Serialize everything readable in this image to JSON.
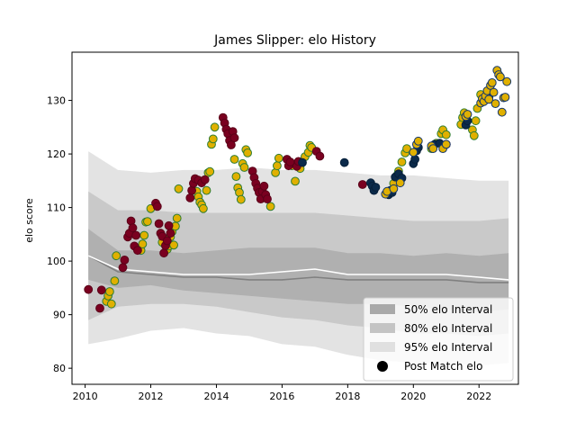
{
  "chart_data": {
    "type": "scatter",
    "title": "James Slipper: elo History",
    "xlabel": "",
    "ylabel": "elo score",
    "xlim": [
      2009.6,
      2023.2
    ],
    "ylim": [
      77,
      139
    ],
    "xticks": [
      2010,
      2012,
      2014,
      2016,
      2018,
      2020,
      2022
    ],
    "yticks": [
      80,
      90,
      100,
      110,
      120,
      130
    ],
    "grid": false,
    "legend_position": "lower right",
    "legend": [
      {
        "label": "50% elo Interval",
        "kind": "band",
        "color": "#a9a9a9"
      },
      {
        "label": "80% elo Interval",
        "kind": "band",
        "color": "#c4c4c4"
      },
      {
        "label": "95% elo Interval",
        "kind": "band",
        "color": "#e0e0e0"
      },
      {
        "label": "Post Match elo",
        "kind": "marker",
        "color": "#000000"
      }
    ],
    "colors": {
      "band_95": "#e3e3e3",
      "band_80": "#c9c9c9",
      "band_50": "#b0b0b0",
      "median_line": "#808080",
      "mean_line": "#ffffff",
      "marker_gold": "#e0b000",
      "marker_green_edge": "#2e7d32",
      "marker_maroon": "#7a0020",
      "marker_navy": "#0b2a4a",
      "marker_gold_navy_edge": "#14376b"
    },
    "intervals": {
      "x": [
        2010.1,
        2011.0,
        2012.0,
        2013.0,
        2014.0,
        2015.0,
        2016.0,
        2017.0,
        2018.0,
        2019.0,
        2020.0,
        2021.0,
        2022.0,
        2022.9
      ],
      "p2_5": [
        84.5,
        85.5,
        87.0,
        87.5,
        86.5,
        86.0,
        84.5,
        84.0,
        82.5,
        81.5,
        81.0,
        81.0,
        80.5,
        81.0
      ],
      "p10": [
        89.0,
        91.5,
        92.0,
        92.0,
        91.5,
        90.5,
        89.5,
        89.0,
        88.0,
        87.5,
        86.5,
        86.5,
        86.0,
        86.5
      ],
      "p25": [
        96.5,
        95.0,
        95.5,
        94.5,
        94.0,
        93.5,
        93.0,
        92.5,
        92.0,
        92.0,
        91.5,
        91.0,
        90.5,
        91.0
      ],
      "p75": [
        106.0,
        102.0,
        102.0,
        101.5,
        102.0,
        102.5,
        102.5,
        102.5,
        101.5,
        101.5,
        101.0,
        101.5,
        101.0,
        101.5
      ],
      "p90": [
        113.0,
        109.5,
        109.5,
        109.0,
        109.0,
        109.0,
        109.0,
        109.0,
        108.5,
        108.0,
        107.5,
        107.5,
        107.5,
        108.0
      ],
      "p97_5": [
        120.5,
        117.0,
        116.5,
        117.0,
        117.0,
        117.5,
        117.0,
        117.0,
        116.5,
        116.0,
        116.0,
        115.5,
        115.0,
        115.0
      ],
      "median": [
        101.0,
        98.0,
        97.5,
        97.0,
        97.0,
        96.5,
        96.5,
        97.0,
        96.5,
        96.5,
        96.5,
        96.5,
        96.0,
        96.0
      ],
      "mean": [
        101.0,
        98.5,
        98.0,
        97.5,
        97.5,
        97.5,
        98.0,
        98.5,
        97.5,
        97.5,
        97.5,
        97.5,
        97.0,
        96.5
      ]
    },
    "series": [
      {
        "style": "gold-green",
        "points": [
          [
            2010.65,
            92.5
          ],
          [
            2010.7,
            93.5
          ],
          [
            2010.75,
            94.3
          ],
          [
            2010.8,
            92.0
          ],
          [
            2010.9,
            96.3
          ],
          [
            2010.95,
            101.0
          ],
          [
            2011.7,
            102.0
          ],
          [
            2011.75,
            103.2
          ],
          [
            2011.8,
            104.8
          ],
          [
            2011.85,
            107.3
          ],
          [
            2011.9,
            107.4
          ],
          [
            2012.0,
            109.8
          ],
          [
            2012.35,
            103.5
          ],
          [
            2012.5,
            102.2
          ],
          [
            2012.55,
            102.8
          ],
          [
            2012.6,
            104.5
          ],
          [
            2012.65,
            105.5
          ],
          [
            2012.7,
            103.0
          ],
          [
            2012.75,
            106.5
          ],
          [
            2012.8,
            108.0
          ],
          [
            2012.85,
            113.5
          ],
          [
            2013.4,
            113.0
          ],
          [
            2013.45,
            112.0
          ],
          [
            2013.5,
            111.0
          ],
          [
            2013.55,
            110.5
          ],
          [
            2013.6,
            109.8
          ],
          [
            2013.7,
            113.2
          ],
          [
            2013.75,
            116.5
          ],
          [
            2013.8,
            116.7
          ],
          [
            2013.85,
            121.8
          ],
          [
            2013.9,
            122.8
          ],
          [
            2013.95,
            125.0
          ],
          [
            2014.55,
            119.0
          ],
          [
            2014.6,
            115.8
          ],
          [
            2014.65,
            113.7
          ],
          [
            2014.7,
            112.8
          ],
          [
            2014.75,
            111.5
          ],
          [
            2014.8,
            118.2
          ],
          [
            2014.85,
            117.5
          ],
          [
            2014.9,
            120.8
          ],
          [
            2014.95,
            120.2
          ],
          [
            2015.65,
            110.2
          ],
          [
            2015.8,
            116.5
          ],
          [
            2015.85,
            117.8
          ],
          [
            2015.9,
            119.2
          ],
          [
            2016.3,
            117.8
          ],
          [
            2016.4,
            114.9
          ],
          [
            2016.55,
            117.3
          ],
          [
            2016.7,
            119.5
          ],
          [
            2016.8,
            120.3
          ],
          [
            2016.85,
            121.6
          ],
          [
            2016.9,
            121.2
          ],
          [
            2019.4,
            114.5
          ],
          [
            2019.5,
            116.0
          ],
          [
            2019.55,
            116.8
          ],
          [
            2019.65,
            118.5
          ],
          [
            2019.75,
            120.2
          ],
          [
            2019.8,
            121.0
          ],
          [
            2020.55,
            121.0
          ],
          [
            2020.7,
            122.0
          ],
          [
            2020.85,
            123.8
          ],
          [
            2020.9,
            124.5
          ],
          [
            2021.0,
            123.6
          ],
          [
            2021.45,
            125.5
          ],
          [
            2021.5,
            126.8
          ],
          [
            2021.55,
            127.7
          ],
          [
            2021.8,
            124.5
          ],
          [
            2021.85,
            123.4
          ],
          [
            2021.9,
            126.2
          ],
          [
            2021.95,
            128.5
          ],
          [
            2022.05,
            131.1
          ]
        ]
      },
      {
        "style": "maroon",
        "points": [
          [
            2010.1,
            94.7
          ],
          [
            2010.45,
            91.2
          ],
          [
            2010.5,
            94.6
          ],
          [
            2011.15,
            98.8
          ],
          [
            2011.2,
            100.2
          ],
          [
            2011.3,
            104.5
          ],
          [
            2011.35,
            105.2
          ],
          [
            2011.4,
            107.5
          ],
          [
            2011.45,
            106.2
          ],
          [
            2011.5,
            102.8
          ],
          [
            2011.55,
            104.8
          ],
          [
            2011.6,
            102.0
          ],
          [
            2012.15,
            110.8
          ],
          [
            2012.2,
            110.2
          ],
          [
            2012.25,
            107.0
          ],
          [
            2012.3,
            105.2
          ],
          [
            2012.35,
            104.6
          ],
          [
            2012.4,
            101.5
          ],
          [
            2012.45,
            102.9
          ],
          [
            2012.5,
            103.8
          ],
          [
            2012.55,
            106.6
          ],
          [
            2012.6,
            105.2
          ],
          [
            2013.2,
            111.8
          ],
          [
            2013.25,
            113.2
          ],
          [
            2013.3,
            114.5
          ],
          [
            2013.35,
            115.4
          ],
          [
            2013.45,
            115.1
          ],
          [
            2013.55,
            114.6
          ],
          [
            2013.65,
            115.2
          ],
          [
            2014.2,
            126.8
          ],
          [
            2014.25,
            125.8
          ],
          [
            2014.3,
            124.6
          ],
          [
            2014.35,
            123.8
          ],
          [
            2014.4,
            122.5
          ],
          [
            2014.45,
            121.7
          ],
          [
            2014.5,
            124.2
          ],
          [
            2014.55,
            123.0
          ],
          [
            2015.1,
            116.8
          ],
          [
            2015.15,
            115.6
          ],
          [
            2015.2,
            114.5
          ],
          [
            2015.25,
            113.6
          ],
          [
            2015.3,
            112.8
          ],
          [
            2015.35,
            111.6
          ],
          [
            2015.4,
            113.0
          ],
          [
            2015.45,
            114.0
          ],
          [
            2015.5,
            112.4
          ],
          [
            2015.55,
            111.6
          ],
          [
            2016.15,
            119.0
          ],
          [
            2016.2,
            117.8
          ],
          [
            2016.25,
            118.5
          ],
          [
            2016.45,
            117.7
          ],
          [
            2016.5,
            118.6
          ],
          [
            2017.05,
            120.5
          ],
          [
            2017.15,
            119.6
          ],
          [
            2018.45,
            114.3
          ],
          [
            2021.0,
            121.8
          ]
        ]
      },
      {
        "style": "navy",
        "points": [
          [
            2016.62,
            118.4
          ],
          [
            2017.9,
            118.4
          ],
          [
            2018.7,
            114.6
          ],
          [
            2018.75,
            114.0
          ],
          [
            2018.8,
            113.2
          ],
          [
            2018.85,
            113.8
          ],
          [
            2019.25,
            112.4
          ],
          [
            2019.3,
            113.2
          ],
          [
            2019.35,
            112.8
          ],
          [
            2019.45,
            115.7
          ],
          [
            2019.55,
            116.3
          ],
          [
            2019.65,
            115.5
          ],
          [
            2020.0,
            118.2
          ],
          [
            2020.05,
            119.0
          ],
          [
            2020.1,
            120.6
          ],
          [
            2020.15,
            121.2
          ],
          [
            2020.65,
            121.8
          ],
          [
            2020.8,
            122.0
          ],
          [
            2021.6,
            125.4
          ],
          [
            2021.65,
            126.2
          ],
          [
            2022.25,
            131.0
          ],
          [
            2022.3,
            130.6
          ]
        ]
      },
      {
        "style": "gold-navy",
        "points": [
          [
            2019.15,
            112.5
          ],
          [
            2019.2,
            113.0
          ],
          [
            2019.4,
            113.5
          ],
          [
            2019.6,
            114.6
          ],
          [
            2020.0,
            120.3
          ],
          [
            2020.1,
            121.8
          ],
          [
            2020.15,
            122.4
          ],
          [
            2020.55,
            121.5
          ],
          [
            2020.6,
            121.0
          ],
          [
            2020.9,
            121.0
          ],
          [
            2021.0,
            121.8
          ],
          [
            2021.6,
            127.0
          ],
          [
            2021.65,
            127.4
          ],
          [
            2022.05,
            129.5
          ],
          [
            2022.1,
            130.3
          ],
          [
            2022.15,
            129.8
          ],
          [
            2022.2,
            130.8
          ],
          [
            2022.25,
            131.8
          ],
          [
            2022.3,
            130.2
          ],
          [
            2022.35,
            132.8
          ],
          [
            2022.4,
            133.3
          ],
          [
            2022.45,
            131.5
          ],
          [
            2022.5,
            129.4
          ],
          [
            2022.55,
            135.6
          ],
          [
            2022.6,
            134.8
          ],
          [
            2022.65,
            134.4
          ],
          [
            2022.7,
            127.8
          ],
          [
            2022.75,
            130.5
          ],
          [
            2022.8,
            130.6
          ],
          [
            2022.85,
            133.5
          ]
        ]
      }
    ]
  }
}
